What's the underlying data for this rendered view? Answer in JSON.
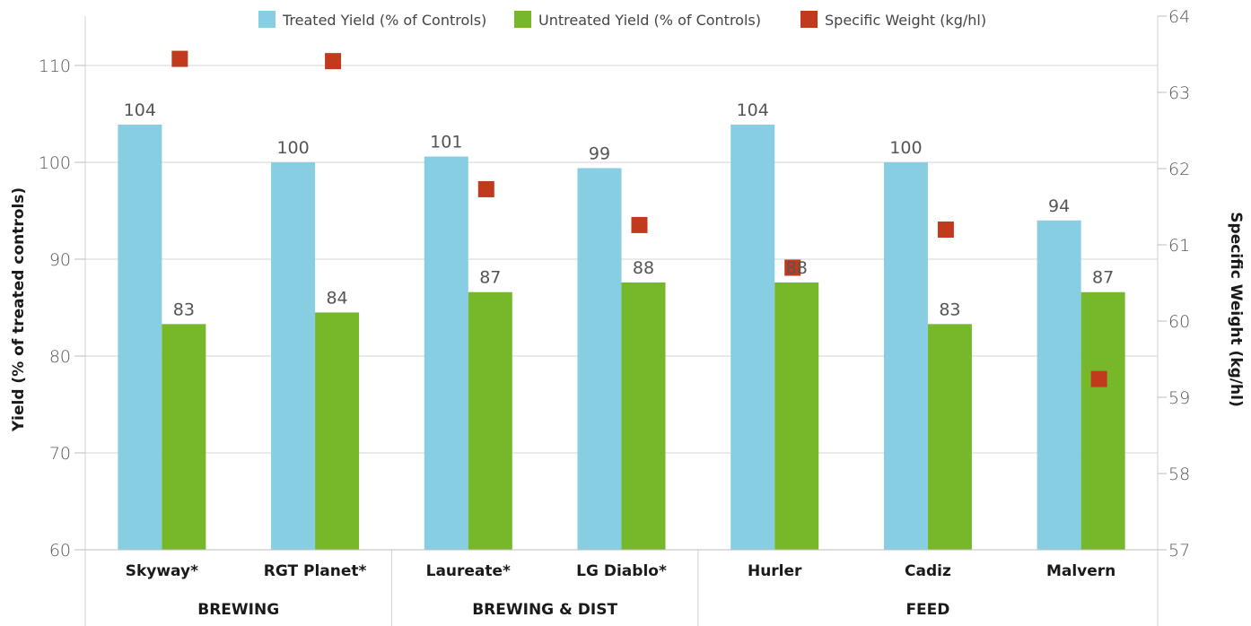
{
  "chart_data": {
    "type": "bar",
    "categories": [
      "Skyway*",
      "RGT Planet*",
      "Laureate*",
      "LG Diablo*",
      "Hurler",
      "Cadiz",
      "Malvern"
    ],
    "groups": [
      {
        "label": "BREWING",
        "categories": [
          "Skyway*",
          "RGT Planet*"
        ]
      },
      {
        "label": "BREWING & DIST",
        "categories": [
          "Laureate*",
          "LG Diablo*"
        ]
      },
      {
        "label": "FEED",
        "categories": [
          "Hurler",
          "Cadiz",
          "Malvern"
        ]
      }
    ],
    "series": [
      {
        "name": "Treated Yield (% of Controls)",
        "kind": "bar",
        "axis": "left",
        "color": "#87CEE3",
        "values": [
          103.9,
          100.0,
          100.6,
          99.4,
          103.9,
          100.0,
          94.0
        ],
        "labels": [
          "104",
          "100",
          "101",
          "99",
          "104",
          "100",
          "94"
        ]
      },
      {
        "name": "Untreated Yield (% of Controls)",
        "kind": "bar",
        "axis": "left",
        "color": "#77B82B",
        "values": [
          83.3,
          84.5,
          86.6,
          87.6,
          87.6,
          83.3,
          86.6
        ],
        "labels": [
          "83",
          "84",
          "87",
          "88",
          "88",
          "83",
          "87"
        ]
      },
      {
        "name": "Specific Weight (kg/hl)",
        "kind": "scatter",
        "axis": "right",
        "color": "#C23A1E",
        "values": [
          63.44,
          63.41,
          61.73,
          61.26,
          60.7,
          61.2,
          59.24
        ]
      }
    ],
    "ylabel": "Yield (% of treated controls)",
    "ylabel_right": "Specific Weight (kg/hl)",
    "ylim": [
      60,
      110
    ],
    "yticks": [
      "60",
      "70",
      "80",
      "90",
      "100",
      "110"
    ],
    "ylim_right": [
      57,
      64
    ],
    "yticks_right": [
      "57",
      "58",
      "59",
      "60",
      "61",
      "62",
      "63",
      "64"
    ],
    "grid": true,
    "legend_position": "top"
  }
}
